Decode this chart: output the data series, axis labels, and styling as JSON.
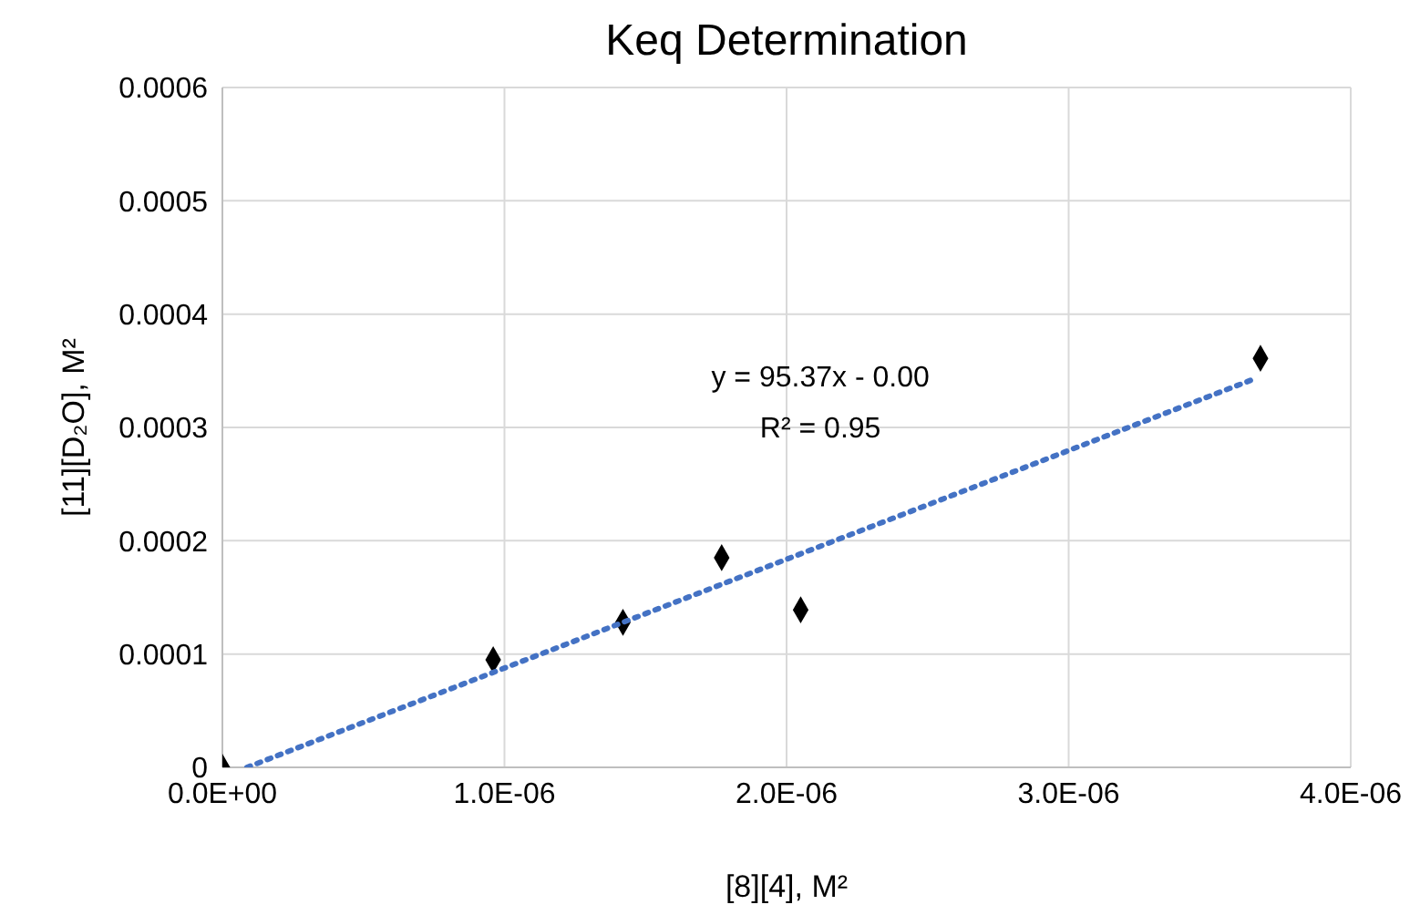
{
  "chart_data": {
    "type": "scatter",
    "title": "Keq Determination",
    "xlabel": "[8][4], M²",
    "ylabel": "[11][D₂O], M²",
    "annotations": [
      "y = 95.37x - 0.00",
      "R² = 0.95"
    ],
    "series": [
      {
        "type": "scatter",
        "color": "#000000",
        "marker": "diamond",
        "x": [
          0,
          9.6e-07,
          1.42e-06,
          1.77e-06,
          2.05e-06,
          3.68e-06
        ],
        "values": [
          0,
          9.5e-05,
          0.000128,
          0.000185,
          0.000139,
          0.000361
        ]
      },
      {
        "type": "line",
        "color": "#4472c4",
        "marker": "none",
        "line_style": "dotted",
        "x": [
          8.7e-08,
          3.66e-06
        ],
        "values": [
          0,
          0.000343
        ]
      }
    ],
    "xlim": [
      0,
      4e-06
    ],
    "xticks": [
      {
        "value": 0,
        "label": "0.0E+00"
      },
      {
        "value": 1e-06,
        "label": "1.0E-06"
      },
      {
        "value": 2e-06,
        "label": "2.0E-06"
      },
      {
        "value": 3e-06,
        "label": "3.0E-06"
      },
      {
        "value": 4e-06,
        "label": "4.0E-06"
      }
    ],
    "ylim": [
      0,
      0.0006
    ],
    "yticks": [
      0,
      0.0001,
      0.0002,
      0.0003,
      0.0004,
      0.0005,
      0.0006
    ],
    "grid": true
  }
}
